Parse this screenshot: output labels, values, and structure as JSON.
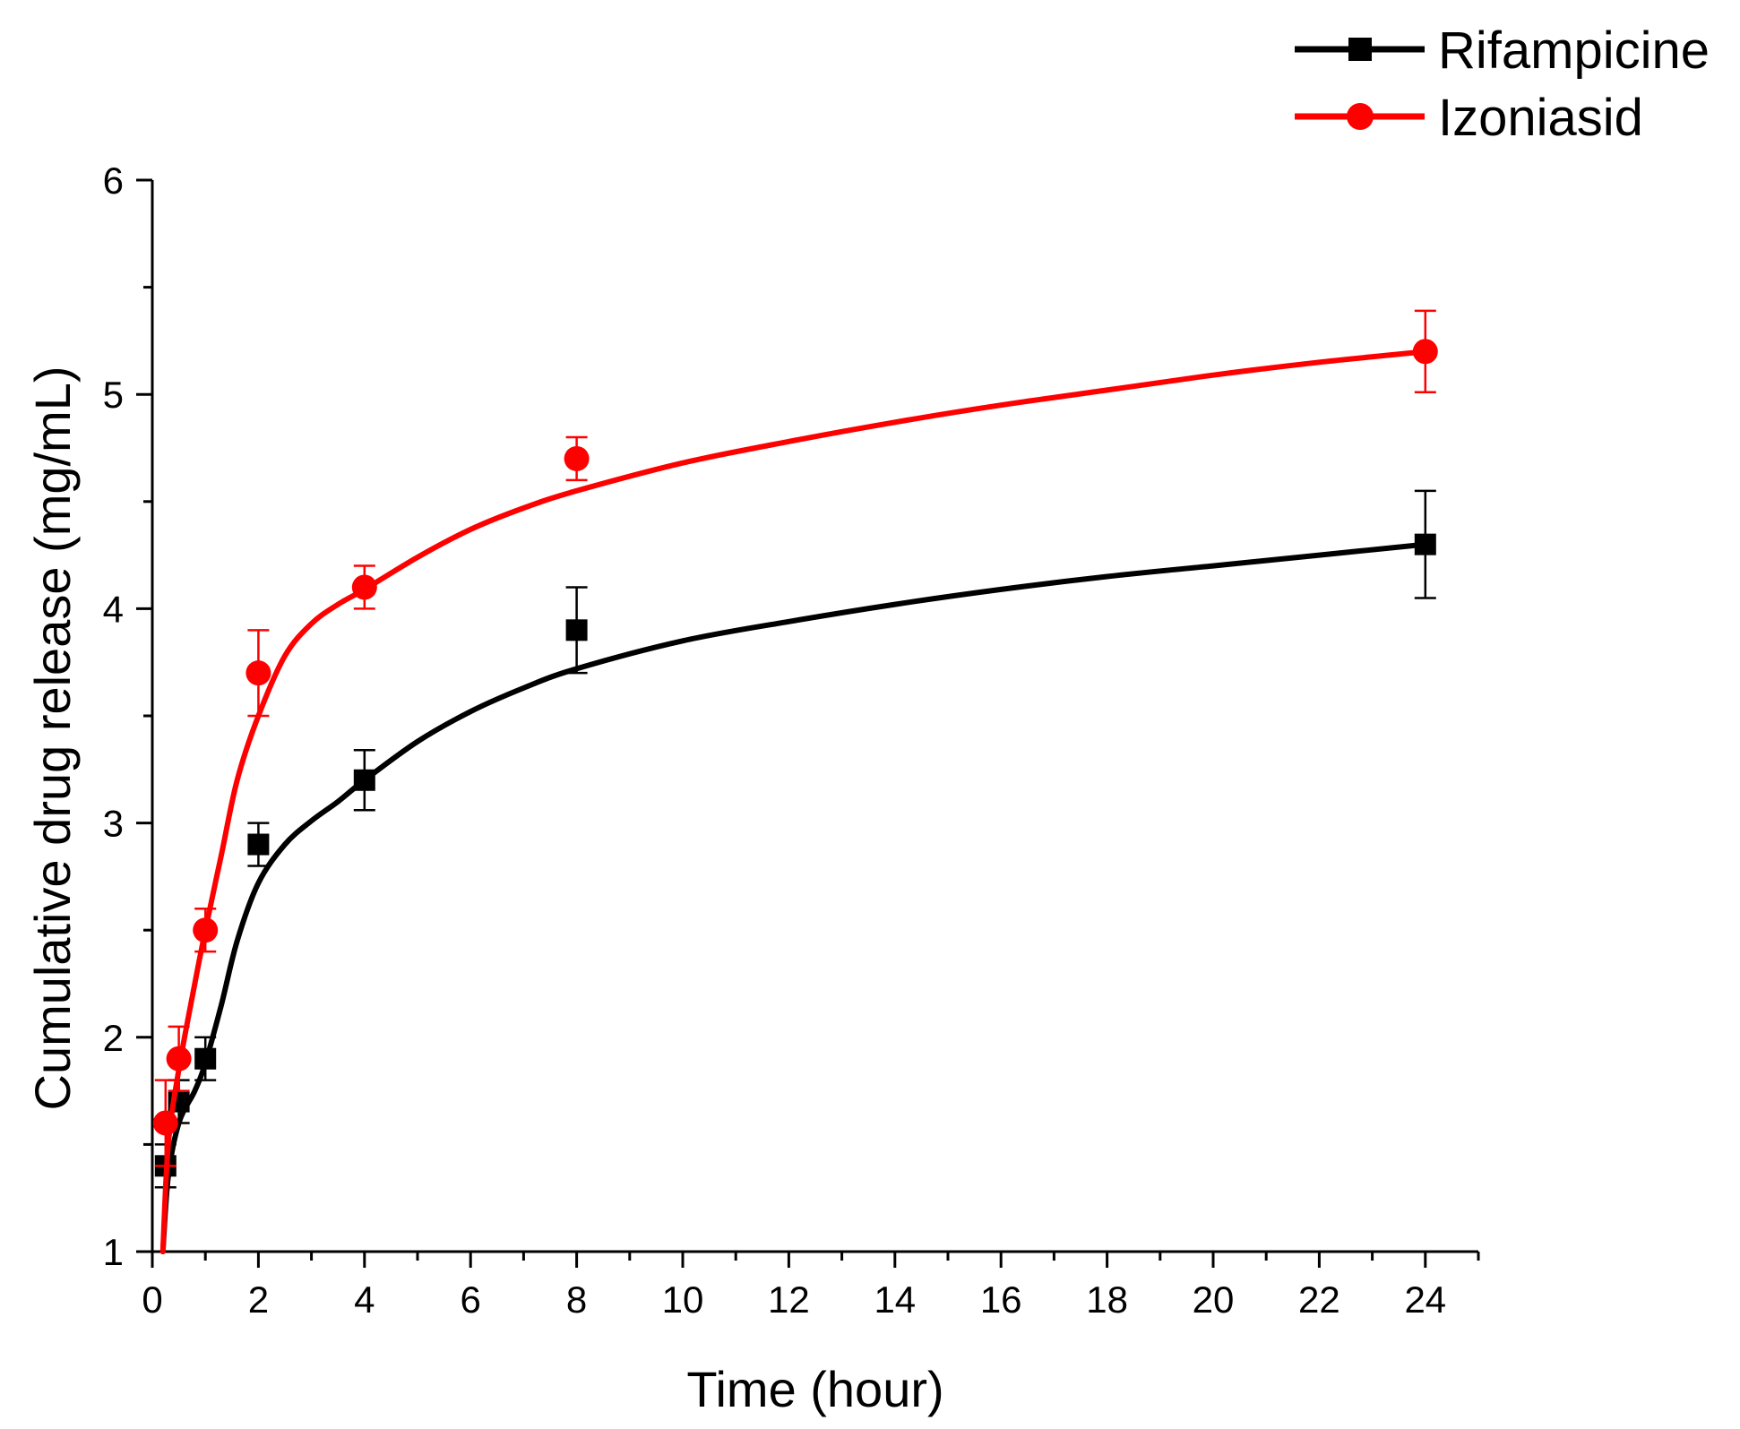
{
  "chart_data": {
    "type": "line",
    "title": "",
    "xlabel": "Time (hour)",
    "ylabel": "Cumulative drug  release (mg/mL)",
    "xlim": [
      0,
      25
    ],
    "ylim": [
      1,
      6
    ],
    "xticks": [
      0,
      2,
      4,
      6,
      8,
      10,
      12,
      14,
      16,
      18,
      20,
      22,
      24
    ],
    "xtick_labels": [
      "0",
      "2",
      "4",
      "6",
      "8",
      "10",
      "12",
      "14",
      "16",
      "18",
      "20",
      "22",
      "24"
    ],
    "yticks": [
      1,
      2,
      3,
      4,
      5,
      6
    ],
    "ytick_labels": [
      "1",
      "2",
      "3",
      "4",
      "5",
      "6"
    ],
    "grid": false,
    "legend_position": "top-right",
    "series": [
      {
        "name": "Rifampicine",
        "color": "#000000",
        "marker": "square",
        "points": [
          {
            "x": 0.25,
            "y": 1.4,
            "err": 0.1
          },
          {
            "x": 0.5,
            "y": 1.7,
            "err": 0.1
          },
          {
            "x": 1,
            "y": 1.9,
            "err": 0.1
          },
          {
            "x": 2,
            "y": 2.9,
            "err": 0.1
          },
          {
            "x": 4,
            "y": 3.2,
            "err": 0.14
          },
          {
            "x": 8,
            "y": 3.9,
            "err": 0.2
          },
          {
            "x": 24,
            "y": 4.3,
            "err": 0.25
          }
        ],
        "fit": [
          {
            "x": 0.2,
            "y": 1.0
          },
          {
            "x": 0.3,
            "y": 1.35
          },
          {
            "x": 0.5,
            "y": 1.6
          },
          {
            "x": 0.8,
            "y": 1.75
          },
          {
            "x": 1.0,
            "y": 1.88
          },
          {
            "x": 1.3,
            "y": 2.15
          },
          {
            "x": 1.6,
            "y": 2.45
          },
          {
            "x": 2.0,
            "y": 2.72
          },
          {
            "x": 2.5,
            "y": 2.9
          },
          {
            "x": 3.0,
            "y": 3.01
          },
          {
            "x": 3.5,
            "y": 3.1
          },
          {
            "x": 4.0,
            "y": 3.2
          },
          {
            "x": 5.0,
            "y": 3.38
          },
          {
            "x": 6.0,
            "y": 3.52
          },
          {
            "x": 7.0,
            "y": 3.63
          },
          {
            "x": 8.0,
            "y": 3.72
          },
          {
            "x": 10.0,
            "y": 3.85
          },
          {
            "x": 12.0,
            "y": 3.94
          },
          {
            "x": 14.0,
            "y": 4.02
          },
          {
            "x": 16.0,
            "y": 4.09
          },
          {
            "x": 18.0,
            "y": 4.15
          },
          {
            "x": 20.0,
            "y": 4.2
          },
          {
            "x": 22.0,
            "y": 4.25
          },
          {
            "x": 24.0,
            "y": 4.3
          }
        ]
      },
      {
        "name": "Izoniasid",
        "color": "#ff0000",
        "marker": "circle",
        "points": [
          {
            "x": 0.25,
            "y": 1.6,
            "err": 0.2
          },
          {
            "x": 0.5,
            "y": 1.9,
            "err": 0.15
          },
          {
            "x": 1,
            "y": 2.5,
            "err": 0.1
          },
          {
            "x": 2,
            "y": 3.7,
            "err": 0.2
          },
          {
            "x": 4,
            "y": 4.1,
            "err": 0.1
          },
          {
            "x": 8,
            "y": 4.7,
            "err": 0.1
          },
          {
            "x": 24,
            "y": 5.2,
            "err": 0.19
          }
        ],
        "fit": [
          {
            "x": 0.2,
            "y": 1.0
          },
          {
            "x": 0.3,
            "y": 1.5
          },
          {
            "x": 0.5,
            "y": 1.85
          },
          {
            "x": 0.8,
            "y": 2.25
          },
          {
            "x": 1.0,
            "y": 2.5
          },
          {
            "x": 1.3,
            "y": 2.85
          },
          {
            "x": 1.6,
            "y": 3.2
          },
          {
            "x": 2.0,
            "y": 3.5
          },
          {
            "x": 2.5,
            "y": 3.78
          },
          {
            "x": 3.0,
            "y": 3.93
          },
          {
            "x": 3.5,
            "y": 4.02
          },
          {
            "x": 4.0,
            "y": 4.09
          },
          {
            "x": 5.0,
            "y": 4.24
          },
          {
            "x": 6.0,
            "y": 4.37
          },
          {
            "x": 7.0,
            "y": 4.47
          },
          {
            "x": 8.0,
            "y": 4.55
          },
          {
            "x": 10.0,
            "y": 4.68
          },
          {
            "x": 12.0,
            "y": 4.78
          },
          {
            "x": 14.0,
            "y": 4.87
          },
          {
            "x": 16.0,
            "y": 4.95
          },
          {
            "x": 18.0,
            "y": 5.02
          },
          {
            "x": 20.0,
            "y": 5.09
          },
          {
            "x": 22.0,
            "y": 5.15
          },
          {
            "x": 24.0,
            "y": 5.2
          }
        ]
      }
    ]
  }
}
